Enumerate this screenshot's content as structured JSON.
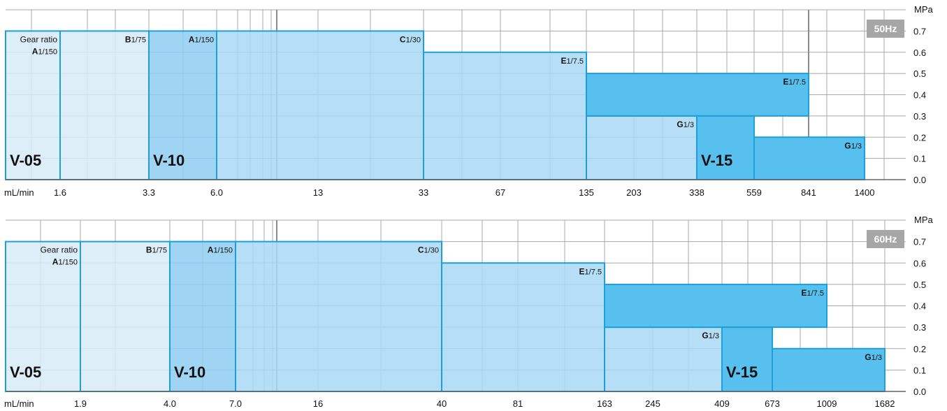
{
  "colors": {
    "grid": "#a8a8a8",
    "gridMajor": "#8c8c8c",
    "box_light": "#d7ebf8",
    "box_mid": "#a9d8f4",
    "box_strong": "#8fcdf1",
    "box_dark": "#57c0ee",
    "box_stroke": "#1f9fd9",
    "badge_bg": "#a6a6a6",
    "badge_text": "#ffffff"
  },
  "chart_data": [
    {
      "type": "area",
      "badge": "50Hz",
      "y_unit": "MPa",
      "x_unit": "mL/min",
      "ylim": [
        0,
        0.8
      ],
      "y_ticks": [
        "0.0",
        "0.1",
        "0.2",
        "0.3",
        "0.4",
        "0.5",
        "0.6",
        "0.7"
      ],
      "x_ticks": [
        "1.6",
        "3.3",
        "6.0",
        "13",
        "33",
        "67",
        "135",
        "203",
        "338",
        "559",
        "841",
        "1400"
      ],
      "models": [
        {
          "label": "V-05",
          "x_start": "",
          "x_end": "3.3"
        },
        {
          "label": "V-10",
          "x_start": "3.3",
          "x_end": "135"
        },
        {
          "label": "V-15",
          "x_start": "338",
          "x_end": "1400"
        }
      ],
      "regions": [
        {
          "letter": "A",
          "ratio": "1/150",
          "prefix": "Gear ratio",
          "x_start": "",
          "x_end": "1.6",
          "pressure": 0.7,
          "shade": "box_light"
        },
        {
          "letter": "B",
          "ratio": "1/75",
          "prefix": "",
          "x_start": "1.6",
          "x_end": "3.3",
          "pressure": 0.7,
          "shade": "box_light"
        },
        {
          "letter": "A",
          "ratio": "1/150",
          "prefix": "",
          "x_start": "3.3",
          "x_end": "6.0",
          "pressure": 0.7,
          "shade": "box_strong"
        },
        {
          "letter": "C",
          "ratio": "1/30",
          "prefix": "",
          "x_start": "6.0",
          "x_end": "33",
          "pressure": 0.7,
          "shade": "box_mid"
        },
        {
          "letter": "E",
          "ratio": "1/7.5",
          "prefix": "",
          "x_start": "33",
          "x_end": "135",
          "pressure": 0.6,
          "shade": "box_mid"
        },
        {
          "letter": "G",
          "ratio": "1/3",
          "prefix": "",
          "x_start": "135",
          "x_end": "338",
          "pressure": 0.3,
          "shade": "box_mid"
        },
        {
          "letter": "E",
          "ratio": "1/7.5",
          "prefix": "",
          "x_start": "135",
          "x_end": "841",
          "pressure": 0.5,
          "shade": "box_dark",
          "fill_from": 0.3
        },
        {
          "letter": "",
          "ratio": "",
          "prefix": "",
          "x_start": "338",
          "x_end": "559",
          "pressure": 0.3,
          "shade": "box_dark"
        },
        {
          "letter": "G",
          "ratio": "1/3",
          "prefix": "",
          "x_start": "559",
          "x_end": "1400",
          "pressure": 0.2,
          "shade": "box_dark"
        }
      ]
    },
    {
      "type": "area",
      "badge": "60Hz",
      "y_unit": "MPa",
      "x_unit": "mL/min",
      "ylim": [
        0,
        0.8
      ],
      "y_ticks": [
        "0.0",
        "0.1",
        "0.2",
        "0.3",
        "0.4",
        "0.5",
        "0.6",
        "0.7"
      ],
      "x_ticks": [
        "1.9",
        "4.0",
        "7.0",
        "16",
        "40",
        "81",
        "163",
        "245",
        "409",
        "673",
        "1009",
        "1682"
      ],
      "models": [
        {
          "label": "V-05",
          "x_start": "",
          "x_end": "4.0"
        },
        {
          "label": "V-10",
          "x_start": "4.0",
          "x_end": "163"
        },
        {
          "label": "V-15",
          "x_start": "409",
          "x_end": "1682"
        }
      ],
      "regions": [
        {
          "letter": "A",
          "ratio": "1/150",
          "prefix": "Gear ratio",
          "x_start": "",
          "x_end": "1.9",
          "pressure": 0.7,
          "shade": "box_light"
        },
        {
          "letter": "B",
          "ratio": "1/75",
          "prefix": "",
          "x_start": "1.9",
          "x_end": "4.0",
          "pressure": 0.7,
          "shade": "box_light"
        },
        {
          "letter": "A",
          "ratio": "1/150",
          "prefix": "",
          "x_start": "4.0",
          "x_end": "7.0",
          "pressure": 0.7,
          "shade": "box_strong"
        },
        {
          "letter": "C",
          "ratio": "1/30",
          "prefix": "",
          "x_start": "7.0",
          "x_end": "40",
          "pressure": 0.7,
          "shade": "box_mid"
        },
        {
          "letter": "E",
          "ratio": "1/7.5",
          "prefix": "",
          "x_start": "40",
          "x_end": "163",
          "pressure": 0.6,
          "shade": "box_mid"
        },
        {
          "letter": "G",
          "ratio": "1/3",
          "prefix": "",
          "x_start": "163",
          "x_end": "409",
          "pressure": 0.3,
          "shade": "box_mid"
        },
        {
          "letter": "E",
          "ratio": "1/7.5",
          "prefix": "",
          "x_start": "163",
          "x_end": "1009",
          "pressure": 0.5,
          "shade": "box_dark",
          "fill_from": 0.3
        },
        {
          "letter": "",
          "ratio": "",
          "prefix": "",
          "x_start": "409",
          "x_end": "673",
          "pressure": 0.3,
          "shade": "box_dark"
        },
        {
          "letter": "G",
          "ratio": "1/3",
          "prefix": "",
          "x_start": "673",
          "x_end": "1682",
          "pressure": 0.2,
          "shade": "box_dark"
        }
      ]
    }
  ]
}
